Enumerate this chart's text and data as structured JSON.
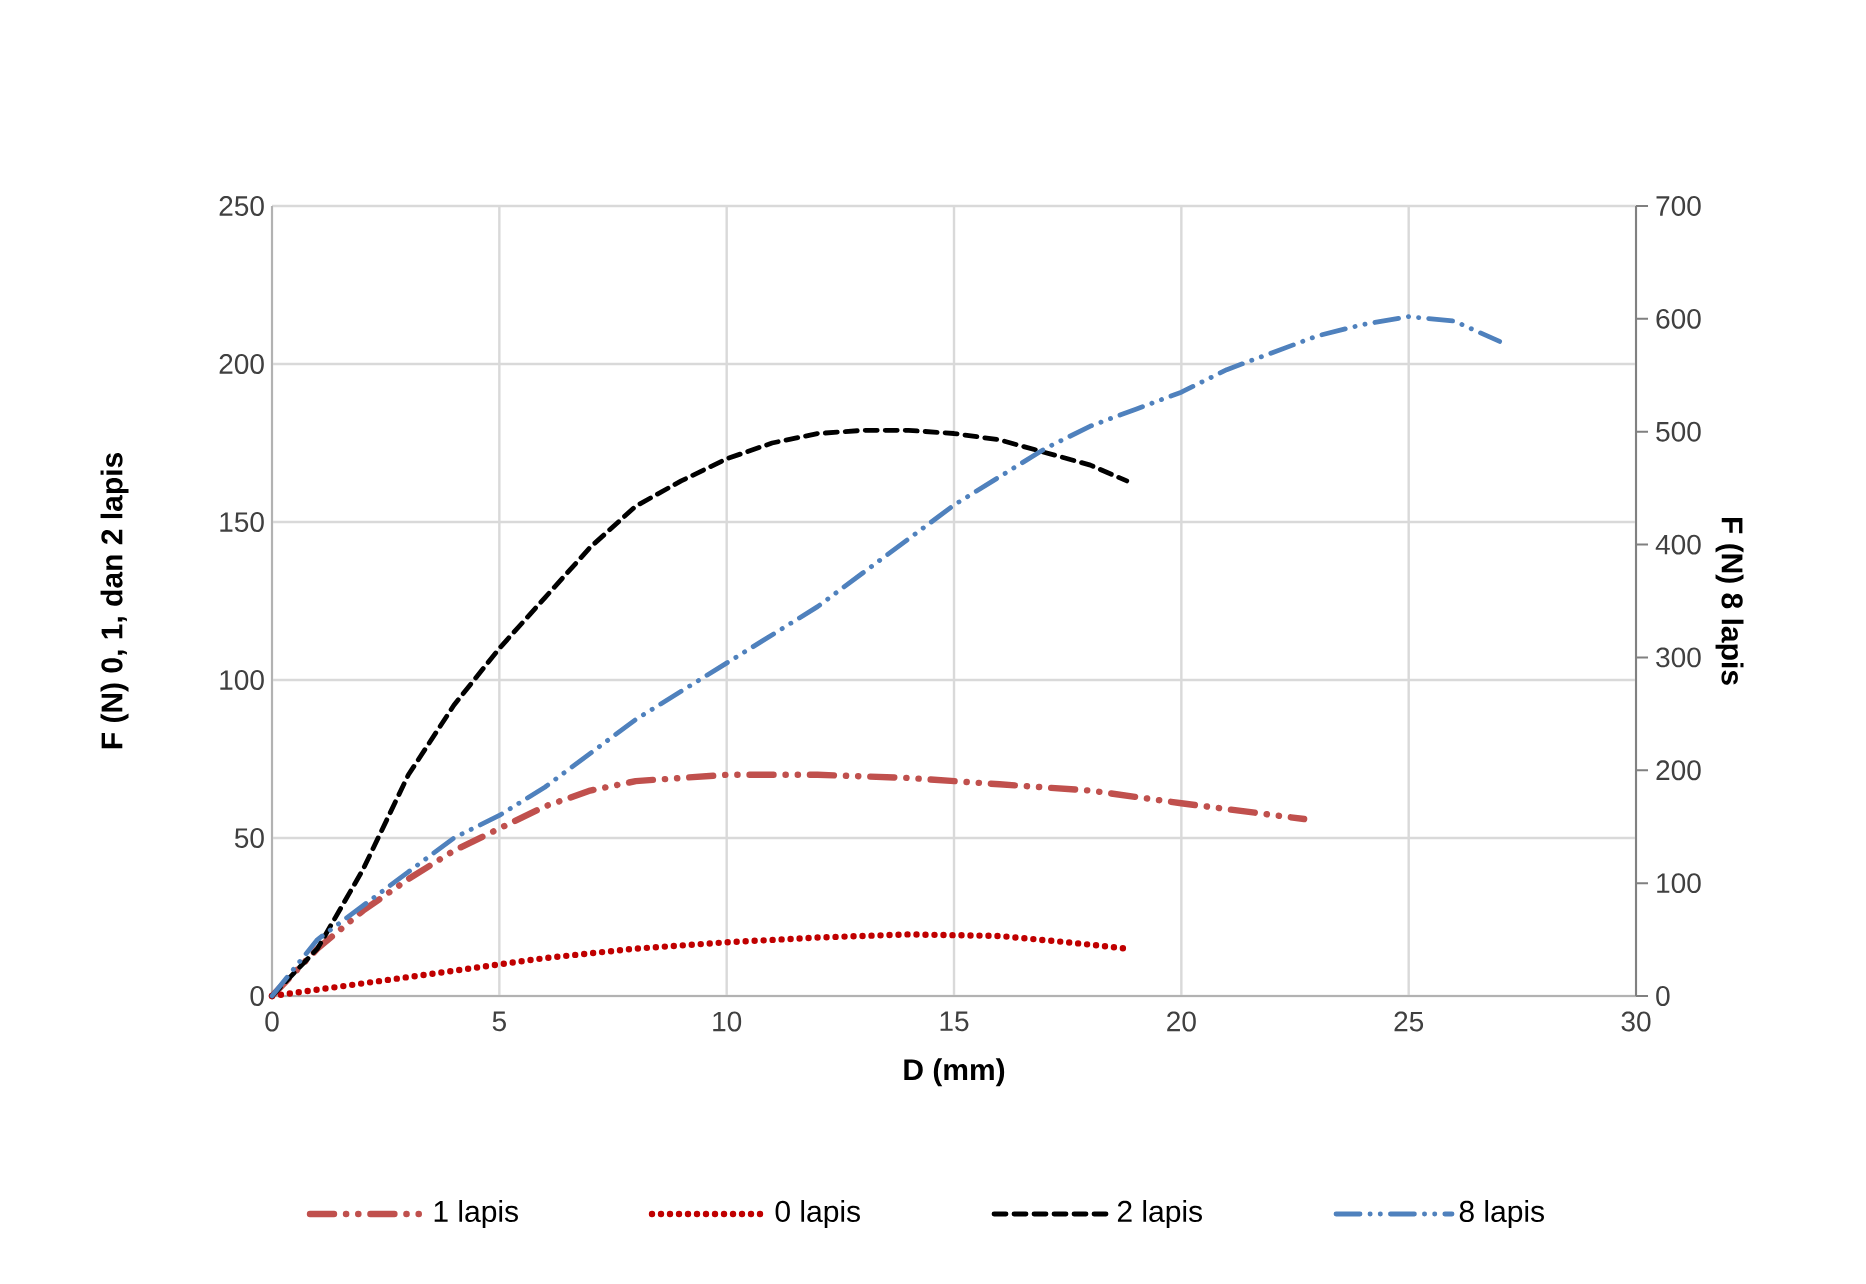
{
  "chart_data": {
    "type": "line",
    "xlabel": "D (mm)",
    "ylabel": "F (N) 0, 1, dan 2 lapis",
    "y2label": "F (N)  8 lapis",
    "xlim": [
      0,
      30
    ],
    "xticks": [
      0,
      5,
      10,
      15,
      20,
      25,
      30
    ],
    "ylim": [
      0,
      250
    ],
    "yticks": [
      0,
      50,
      100,
      150,
      200,
      250
    ],
    "y2lim": [
      0,
      700
    ],
    "y2ticks": [
      0,
      100,
      200,
      300,
      400,
      500,
      600,
      700
    ],
    "grid": true,
    "legend": "bottom",
    "series": [
      {
        "name": "1 lapis",
        "color": "#c0504d",
        "line_style": "dashdot",
        "x": [
          0,
          1,
          2,
          3,
          4,
          5,
          6,
          7,
          8,
          10,
          12,
          14,
          16,
          18,
          20,
          22.7
        ],
        "values": [
          0,
          15,
          27,
          37,
          46,
          53,
          60,
          65,
          68,
          70,
          70,
          69,
          67,
          65,
          61,
          56
        ]
      },
      {
        "name": "0 lapis",
        "color": "#c00000",
        "line_style": "dotted",
        "x": [
          0,
          2,
          4,
          6,
          8,
          10,
          12,
          14,
          16,
          17.5,
          18.8
        ],
        "values": [
          0,
          4,
          8,
          12,
          15,
          17,
          18.5,
          19.5,
          19,
          17,
          15
        ]
      },
      {
        "name": "2 lapis",
        "color": "#000000",
        "line_style": "dashed",
        "x": [
          0,
          1,
          2,
          3,
          4,
          5,
          6,
          7,
          8,
          9,
          10,
          11,
          12,
          13,
          14,
          15,
          16,
          17,
          18,
          18.8
        ],
        "values": [
          0,
          15,
          40,
          70,
          92,
          110,
          126,
          142,
          155,
          163,
          170,
          175,
          178,
          179,
          179,
          178,
          176,
          172,
          168,
          163
        ]
      },
      {
        "name": "8 lapis",
        "color": "#4f81bd",
        "line_style": "dashdotdot",
        "axis": "y2",
        "x": [
          0,
          1,
          2,
          3,
          4,
          5,
          6,
          7,
          8,
          9,
          10,
          11,
          12,
          13,
          14,
          15,
          16,
          17,
          18,
          19,
          20,
          21,
          22,
          23,
          24,
          25,
          26,
          27
        ],
        "values": [
          0,
          50,
          80,
          110,
          140,
          160,
          185,
          215,
          245,
          270,
          295,
          320,
          345,
          375,
          405,
          435,
          460,
          485,
          505,
          520,
          535,
          555,
          570,
          585,
          595,
          602,
          598,
          580
        ]
      }
    ]
  }
}
